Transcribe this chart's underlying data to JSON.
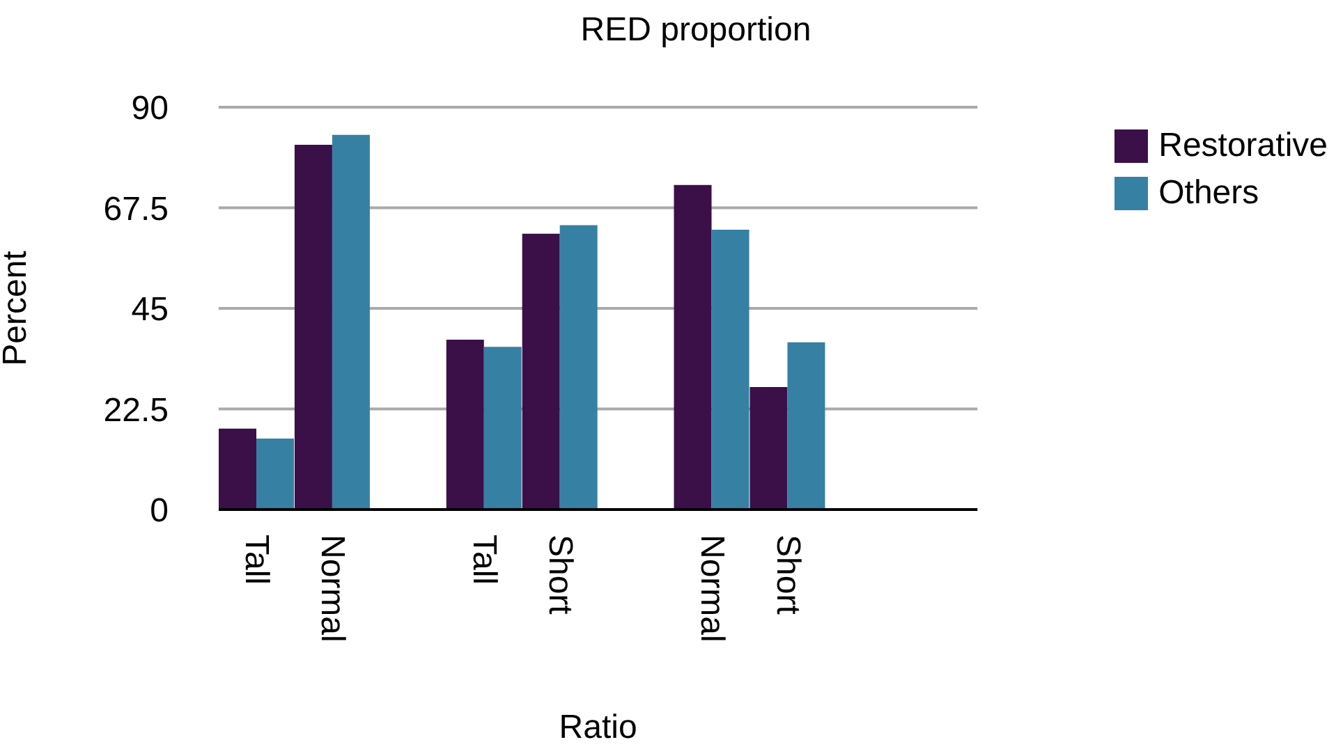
{
  "chart_data": {
    "type": "bar",
    "title": "RED proportion",
    "xlabel": "Ratio",
    "ylabel": "Percent",
    "categories": [
      "Tall",
      "Normal",
      null,
      "Tall",
      "Short",
      null,
      "Normal",
      "Short",
      null,
      null
    ],
    "series": [
      {
        "name": "Restorative",
        "color": "#3b0f47",
        "values": [
          18.1,
          81.6,
          null,
          38.0,
          61.7,
          null,
          72.6,
          27.4,
          null,
          null
        ]
      },
      {
        "name": "Others",
        "color": "#3680a3",
        "values": [
          15.9,
          83.8,
          null,
          36.4,
          63.6,
          null,
          62.6,
          37.4,
          null,
          null
        ]
      }
    ],
    "ylim": [
      0,
      90
    ],
    "yticks": [
      0,
      22.5,
      45,
      67.5,
      90
    ],
    "grid": "y",
    "legend": "top right"
  }
}
